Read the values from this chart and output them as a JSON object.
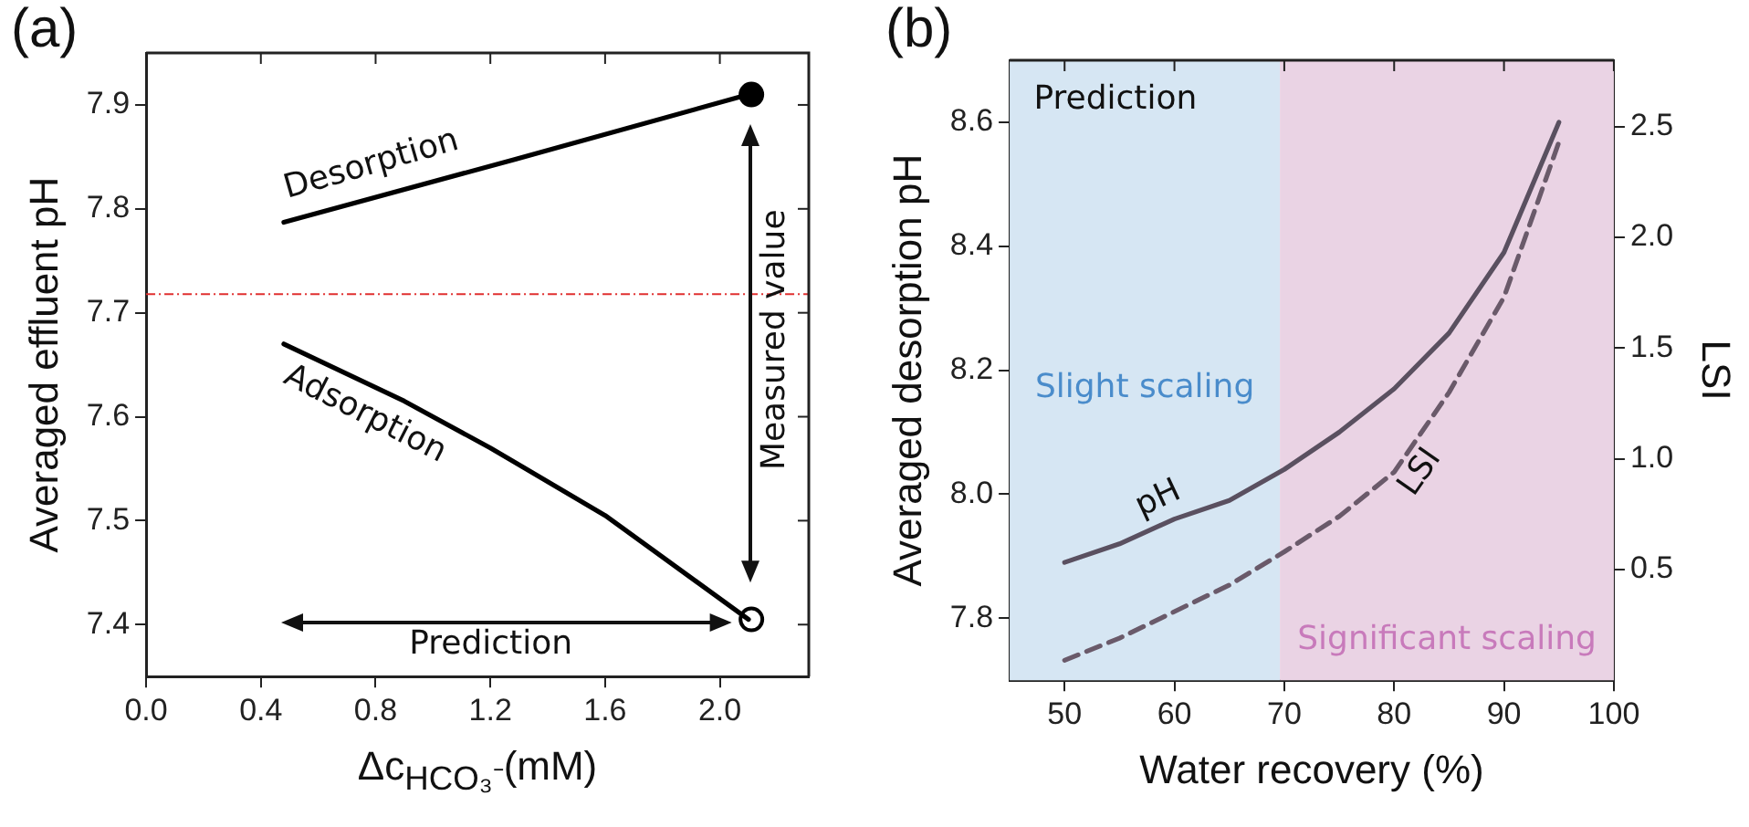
{
  "chart_data": [
    {
      "type": "line",
      "title": "(a)",
      "xlabel": "Δc$_{HCO₃⁻}$(mM)",
      "ylabel": "Averaged effluent pH",
      "xlim": [
        0,
        2.31
      ],
      "xticks": [
        {
          "value": 0,
          "label": "0.0"
        },
        0.4,
        0.8,
        1.2,
        1.6,
        {
          "value": 2,
          "label": "2.0"
        }
      ],
      "ylim": [
        7.35,
        7.95
      ],
      "yticks": [
        7.4,
        7.5,
        7.6,
        7.7,
        7.8,
        7.9
      ],
      "grid": false,
      "legend": false,
      "series": [
        {
          "color": "#000000",
          "x": [
            0.48,
            1.29,
            2.1
          ],
          "values": [
            7.787,
            7.848,
            7.91
          ],
          "marker": "none"
        },
        {
          "color": "#000000",
          "x": [
            0.48,
            0.9,
            1.2,
            1.6,
            2.1
          ],
          "values": [
            7.67,
            7.615,
            7.57,
            7.505,
            7.405
          ],
          "marker": "none"
        },
        {
          "type": "scatter",
          "x": [
            2.11,
            2.11
          ],
          "values": [
            7.91,
            7.405
          ],
          "colors": [
            "#000000",
            "#ffffff"
          ],
          "marker": "circle"
        }
      ],
      "ref_lines": [
        {
          "axis": "y",
          "value": 7.718,
          "color": "#e03030",
          "line_style": "dashed"
        }
      ],
      "annotations": [
        "Desorption",
        "Adsorption",
        "Measured value",
        "Prediction"
      ]
    },
    {
      "type": "line",
      "title": "(b)",
      "xlabel": "Water recovery (%)",
      "ylabel": "Averaged desorption pH",
      "y2label": "LSI",
      "xlim": [
        45,
        100
      ],
      "xticks": [
        50,
        60,
        70,
        80,
        90,
        100
      ],
      "ylim": [
        7.7,
        8.7
      ],
      "yticks": [
        7.8,
        {
          "value": 8,
          "label": "8.0"
        },
        8.2,
        8.4,
        8.6
      ],
      "y2lim": [
        0,
        2.8
      ],
      "y2ticks": [
        0.5,
        {
          "value": 1,
          "label": "1.0"
        },
        1.5,
        {
          "value": 2,
          "label": "2.0"
        },
        2.5
      ],
      "grid": false,
      "legend": false,
      "series": [
        {
          "color": "#5a5060",
          "x": [
            50,
            55,
            60,
            65,
            70,
            75,
            80,
            85,
            90,
            95
          ],
          "values": [
            7.89,
            7.92,
            7.96,
            7.99,
            8.04,
            8.1,
            8.17,
            8.26,
            8.39,
            8.6
          ],
          "marker": "none",
          "line_style": "solid"
        },
        {
          "color": "#6a5a6a",
          "axis": "y2",
          "x": [
            50,
            55,
            60,
            65,
            70,
            75,
            80,
            85,
            90,
            95
          ],
          "values": [
            0.09,
            0.19,
            0.31,
            0.43,
            0.58,
            0.74,
            0.94,
            1.3,
            1.73,
            2.43
          ],
          "marker": "none",
          "line_style": "dashed"
        }
      ],
      "bands": [
        {
          "axis": "x",
          "from": 45,
          "to": 69.6,
          "label": "Slight scaling",
          "color": "#d6e6f3"
        },
        {
          "axis": "x",
          "from": 69.6,
          "to": 100,
          "label": "Significant scaling",
          "color": "#ead3e4"
        }
      ],
      "annotations": [
        "Prediction",
        "pH",
        "LSI"
      ]
    }
  ]
}
